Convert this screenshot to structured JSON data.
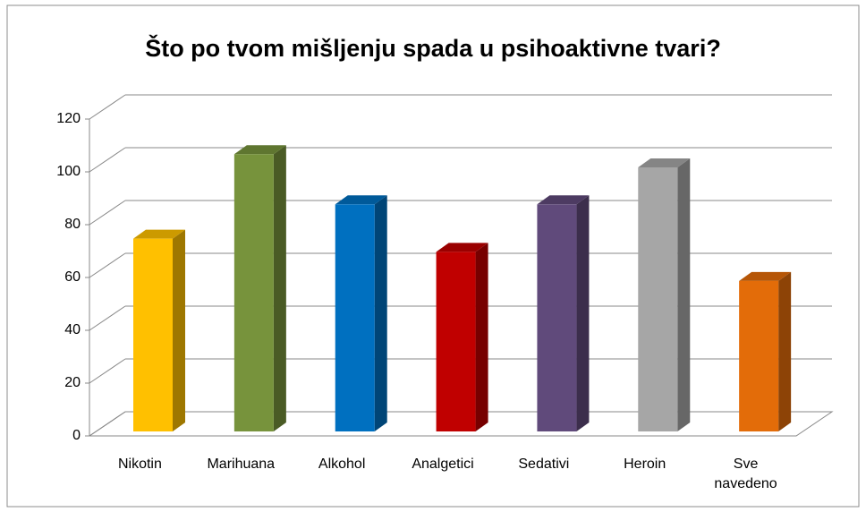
{
  "chart_data": {
    "type": "bar3d",
    "title": "Što po tvom mišljenju spada u psihoaktivne tvari?",
    "categories": [
      "Nikotin",
      "Marihuana",
      "Alkohol",
      "Analgetici",
      "Sedativi",
      "Heroin",
      "Sve navedeno"
    ],
    "values": [
      73,
      105,
      86,
      68,
      86,
      100,
      57
    ],
    "colors": [
      "#ffc000",
      "#77933c",
      "#0070c0",
      "#c00000",
      "#604a7b",
      "#a6a6a6",
      "#e36c09"
    ],
    "ylim": [
      0,
      120
    ],
    "yticks": [
      0,
      20,
      40,
      60,
      80,
      100,
      120
    ],
    "grid": true
  }
}
